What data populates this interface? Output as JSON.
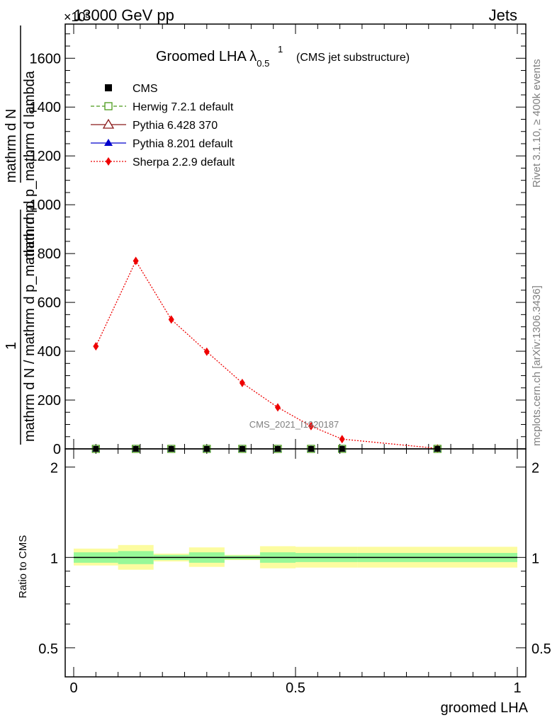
{
  "header": {
    "left": "13000 GeV pp",
    "right": "Jets",
    "exponent": "×10³"
  },
  "side_labels": {
    "rivet": "Rivet 3.1.10, ≥ 400k events",
    "mcplots": "mcplots.cern.ch [arXiv:1306.3436]"
  },
  "watermark": "CMS_2021_I1920187",
  "chart_data": [
    {
      "type": "line",
      "title_main": "Groomed LHA λ",
      "title_sup": "1",
      "title_sub": "0.5",
      "title_note": "(CMS jet substructure)",
      "ylabel_numerator": "mathrm d N",
      "ylabel_denominator": "mathrm d p_mathrm d lambda",
      "ylabel_alt_num": "1",
      "ylabel_alt_den": "mathrm d N / mathrm d p_mathrm d p",
      "ylabel": "mathrm d N / mathrm d p_mathrm d p_mathrm d lambda",
      "xlim": [
        -0.02,
        1.02
      ],
      "ylim": [
        0,
        1740
      ],
      "y_ticks": [
        0,
        200,
        400,
        600,
        800,
        1000,
        1200,
        1400,
        1600
      ],
      "y_tick_labels": [
        "0",
        "200",
        "400",
        "600",
        "800",
        "1000",
        "1200",
        "1400",
        "1600"
      ],
      "legend_position": "top-left",
      "legend": [
        {
          "name": "CMS",
          "color": "#000000",
          "marker": "square-filled",
          "line": "none"
        },
        {
          "name": "Herwig 7.2.1 default",
          "color": "#4a9a1a",
          "marker": "square-open",
          "line": "dashed"
        },
        {
          "name": "Pythia 6.428 370",
          "color": "#8b1a1a",
          "marker": "triangle-open",
          "line": "solid"
        },
        {
          "name": "Pythia 8.201 default",
          "color": "#0000cc",
          "marker": "triangle-filled",
          "line": "solid"
        },
        {
          "name": "Sherpa 2.2.9 default",
          "color": "#ee0000",
          "marker": "diamond-filled",
          "line": "dotted"
        }
      ],
      "series": [
        {
          "name": "CMS",
          "x": [
            0.05,
            0.14,
            0.22,
            0.3,
            0.38,
            0.46,
            0.535,
            0.605,
            0.82
          ],
          "values": [
            0,
            0,
            0,
            0,
            0,
            0,
            0,
            0,
            0
          ]
        },
        {
          "name": "Sherpa 2.2.9 default",
          "x": [
            0.05,
            0.14,
            0.22,
            0.3,
            0.38,
            0.46,
            0.535,
            0.605,
            0.82
          ],
          "values": [
            420,
            770,
            530,
            398,
            270,
            170,
            93,
            40,
            2
          ]
        }
      ]
    },
    {
      "type": "area",
      "ylabel": "Ratio to CMS",
      "xlabel": "groomed LHA",
      "xlim": [
        -0.02,
        1.02
      ],
      "ylim": [
        0.4,
        2.3
      ],
      "log_y": true,
      "y_ticks": [
        0.5,
        1,
        2
      ],
      "y_tick_labels": [
        "0.5",
        "1",
        "2"
      ],
      "x_ticks": [
        0,
        0.5,
        1
      ],
      "x_tick_labels": [
        "0",
        "0.5",
        "1"
      ],
      "bands": {
        "bin_edges": [
          0.0,
          0.1,
          0.18,
          0.26,
          0.34,
          0.42,
          0.5,
          0.64,
          1.0
        ],
        "inner_low": [
          0.96,
          0.95,
          0.98,
          0.96,
          0.985,
          0.96,
          0.965,
          0.965
        ],
        "inner_high": [
          1.04,
          1.05,
          1.02,
          1.04,
          1.015,
          1.04,
          1.035,
          1.035
        ],
        "outer_low": [
          0.94,
          0.91,
          0.97,
          0.93,
          0.98,
          0.92,
          0.925,
          0.925
        ],
        "outer_high": [
          1.07,
          1.1,
          1.03,
          1.08,
          1.02,
          1.09,
          1.085,
          1.085
        ],
        "inner_color": "#98f898",
        "outer_color": "#fcfca0"
      }
    }
  ]
}
